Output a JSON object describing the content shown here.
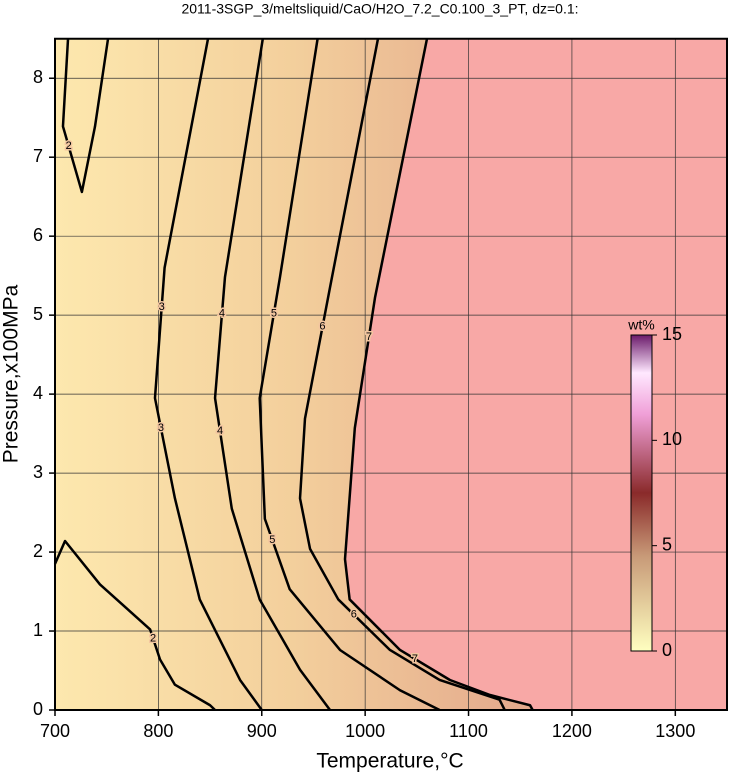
{
  "chart_data": {
    "type": "contour",
    "title": "2011-3SGP_3/meltsliquid/CaO/H2O_7.2_C0.100_3_PT, dz=0.1:",
    "xlabel": "Temperature,°C",
    "ylabel": "Pressure,x100MPa",
    "xlim": [
      700,
      1350
    ],
    "ylim": [
      0,
      8.5
    ],
    "xticks": [
      700,
      800,
      900,
      1000,
      1100,
      1200,
      1300
    ],
    "yticks": [
      0,
      1,
      2,
      3,
      4,
      5,
      6,
      7,
      8
    ],
    "grid": true,
    "colorbar": {
      "label": "wt%",
      "lim": [
        0,
        15
      ],
      "ticks": [
        0,
        5,
        10,
        15
      ]
    },
    "series": [
      {
        "name": "2",
        "x": [
          712.6,
          707.7,
          726,
          738.7,
          751.3,
          null,
          700,
          709.7,
          743.5,
          792,
          801.6,
          816,
          850,
          854.8
        ],
        "y": [
          8.5,
          7.39,
          6.56,
          7.39,
          8.5,
          null,
          1.85,
          2.14,
          1.59,
          1.02,
          0.64,
          0.32,
          0.06,
          0
        ]
      },
      {
        "name": "3",
        "x": [
          848,
          806,
          796.7,
          816,
          840,
          879,
          900
        ],
        "y": [
          8.5,
          5.6,
          3.95,
          2.68,
          1.4,
          0.38,
          0
        ]
      },
      {
        "name": "4",
        "x": [
          901,
          864.4,
          854.8,
          871,
          898,
          937,
          966
        ],
        "y": [
          8.5,
          5.48,
          3.95,
          2.55,
          1.4,
          0.51,
          0
        ]
      },
      {
        "name": "5",
        "x": [
          954,
          917.6,
          898,
          903,
          927,
          975.7,
          1033.7,
          1072
        ],
        "y": [
          8.5,
          5.48,
          3.95,
          2.42,
          1.53,
          0.76,
          0.25,
          0
        ]
      },
      {
        "name": "6",
        "x": [
          1012.4,
          966,
          941.8,
          937,
          946.7,
          974,
          1024,
          1072,
          1130,
          1135
        ],
        "y": [
          8.5,
          5.35,
          3.69,
          2.68,
          2.04,
          1.4,
          0.76,
          0.38,
          0.13,
          0
        ]
      },
      {
        "name": "7",
        "x": [
          1059.8,
          1009.5,
          990,
          980.5,
          985,
          1033.7,
          1082,
          1120.8,
          1159.5,
          1162
        ],
        "y": [
          8.5,
          5.22,
          3.57,
          1.91,
          1.4,
          0.76,
          0.38,
          0.19,
          0.06,
          0
        ]
      }
    ]
  }
}
